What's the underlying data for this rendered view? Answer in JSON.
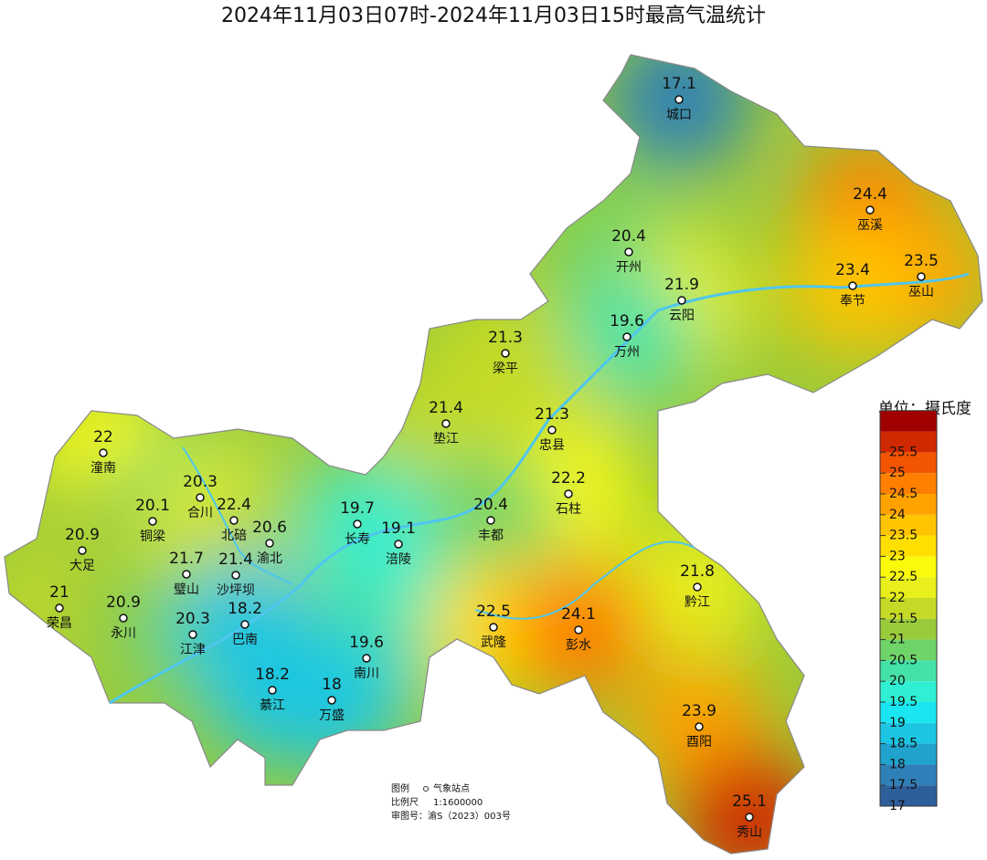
{
  "title": "2024年11月03日07时-2024年11月03日15时最高气温统计",
  "stations": [
    {
      "name": "城口",
      "value": 17.1
    },
    {
      "name": "巫溪",
      "value": 24.4
    },
    {
      "name": "开州",
      "value": 20.4
    },
    {
      "name": "巫山",
      "value": 23.5
    },
    {
      "name": "奉节",
      "value": 23.4
    },
    {
      "name": "云阳",
      "value": 21.9
    },
    {
      "name": "万州",
      "value": 19.6
    },
    {
      "name": "梁平",
      "value": 21.3
    },
    {
      "name": "垫江",
      "value": 21.4
    },
    {
      "name": "忠县",
      "value": 21.3
    },
    {
      "name": "潼南",
      "value": 22
    },
    {
      "name": "合川",
      "value": 20.3
    },
    {
      "name": "石柱",
      "value": 22.2
    },
    {
      "name": "铜梁",
      "value": 20.1
    },
    {
      "name": "北碚",
      "value": 22.4
    },
    {
      "name": "渝北",
      "value": 20.6
    },
    {
      "name": "长寿",
      "value": 19.7
    },
    {
      "name": "涪陵",
      "value": 19.1
    },
    {
      "name": "丰都",
      "value": 20.4
    },
    {
      "name": "大足",
      "value": 20.9
    },
    {
      "name": "璧山",
      "value": 21.7
    },
    {
      "name": "沙坪坝",
      "value": 21.4
    },
    {
      "name": "荣昌",
      "value": 21
    },
    {
      "name": "永川",
      "value": 20.9
    },
    {
      "name": "黔江",
      "value": 21.8
    },
    {
      "name": "江津",
      "value": 20.3
    },
    {
      "name": "巴南",
      "value": 18.2
    },
    {
      "name": "武隆",
      "value": 22.5
    },
    {
      "name": "彭水",
      "value": 24.1
    },
    {
      "name": "南川",
      "value": 19.6
    },
    {
      "name": "綦江",
      "value": 18.2
    },
    {
      "name": "万盛",
      "value": 18
    },
    {
      "name": "酉阳",
      "value": 23.9
    },
    {
      "name": "秀山",
      "value": 25.1
    }
  ],
  "legend": {
    "title": "单位：摄氏度",
    "ticks": [
      17,
      17.5,
      18,
      18.5,
      19,
      19.5,
      20,
      20.5,
      21,
      21.5,
      22,
      22.5,
      23,
      23.5,
      24,
      24.5,
      25,
      25.5
    ],
    "colors": [
      "#2e5f9a",
      "#2f80b8",
      "#1fa3cc",
      "#1cc6e2",
      "#19e6f0",
      "#2ff0d4",
      "#45e2a8",
      "#6fd468",
      "#9acb3a",
      "#c4da26",
      "#e8ef1a",
      "#fafa0a",
      "#ffdf00",
      "#ffc400",
      "#ffa200",
      "#ff8000",
      "#f25400",
      "#d02800",
      "#a00000"
    ]
  },
  "notes": {
    "legend_label": "图例",
    "legend_item": "气象站点",
    "scale_label": "比例尺",
    "scale": "1:1600000",
    "approval": "审图号：渝S（2023）003号"
  }
}
